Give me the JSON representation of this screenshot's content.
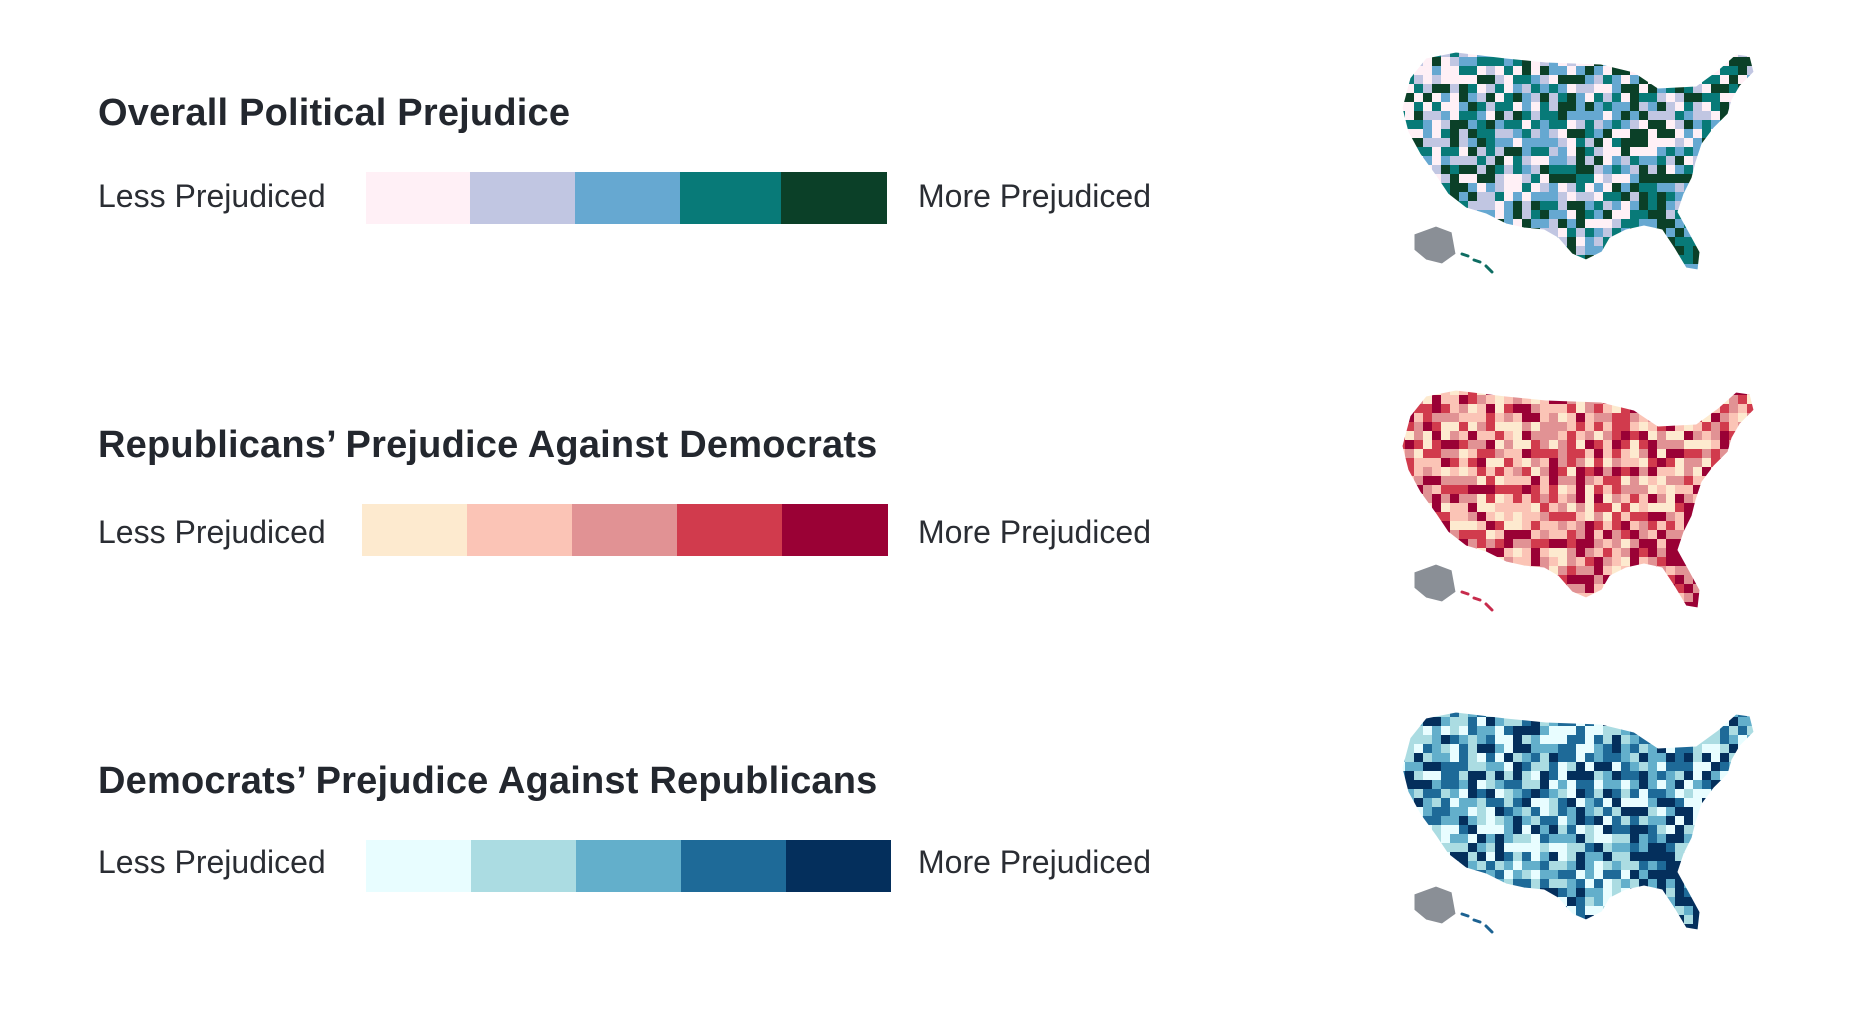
{
  "legends": [
    {
      "title": "Overall Political Prejudice",
      "less_label": "Less Prejudiced",
      "more_label": "More Prejudiced",
      "colors": [
        "#fff0f6",
        "#c1c6e2",
        "#66a8d1",
        "#087a78",
        "#0b4028"
      ],
      "map_accent": "#0e6d62",
      "map_alaska": "#8a8f96"
    },
    {
      "title": "Republicans’ Prejudice Against Democrats",
      "less_label": "Less Prejudiced",
      "more_label": "More Prejudiced",
      "colors": [
        "#fdeacf",
        "#fbc4b6",
        "#e19294",
        "#d13b4d",
        "#9a0135"
      ],
      "map_accent": "#c72b4c",
      "map_alaska": "#8a8f96"
    },
    {
      "title": "Democrats’ Prejudice Against Republicans",
      "less_label": "Less Prejudiced",
      "more_label": "More Prejudiced",
      "colors": [
        "#e8fdff",
        "#abdce2",
        "#63afcb",
        "#1e6a98",
        "#042f5c"
      ],
      "map_accent": "#1c6292",
      "map_alaska": "#8a8f96"
    }
  ]
}
